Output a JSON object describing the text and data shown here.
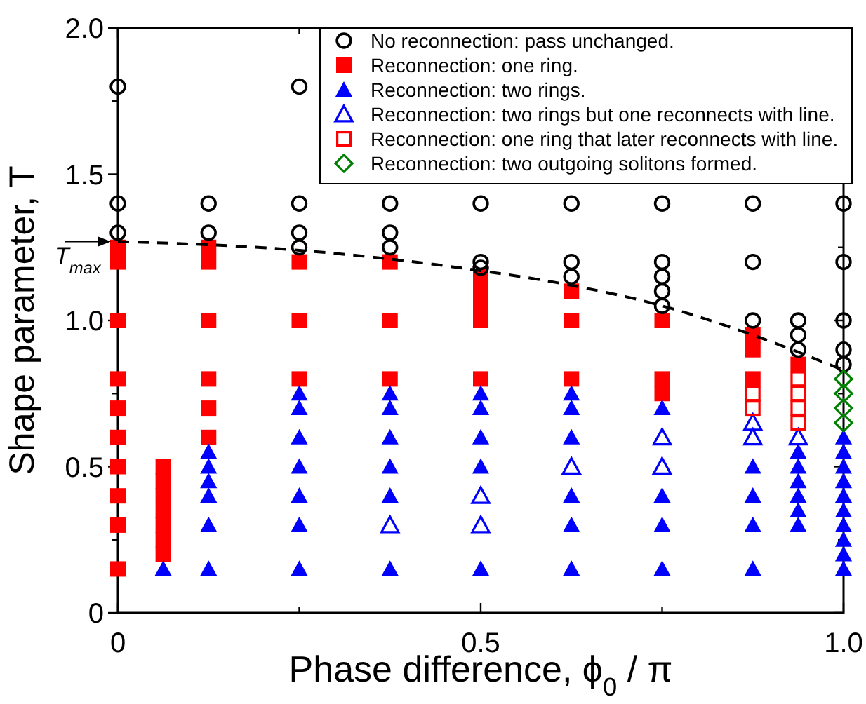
{
  "chart_data": {
    "type": "scatter",
    "xlabel": "Phase difference,  ϕ$_{0}$ / π",
    "ylabel": "Shape parameter, T",
    "xlim": [
      0,
      1
    ],
    "ylim": [
      0,
      2
    ],
    "xticks": [
      0,
      {
        "value": 0.25,
        "label": null
      },
      0.5,
      {
        "value": 0.75,
        "label": null
      },
      {
        "value": 1,
        "label": "1.0"
      }
    ],
    "yticks": [
      0,
      {
        "value": 0.25,
        "label": null
      },
      0.5,
      {
        "value": 0.75,
        "label": null
      },
      {
        "value": 1,
        "label": "1.0"
      },
      {
        "value": 1.25,
        "label": null
      },
      1.5,
      {
        "value": 1.75,
        "label": null
      },
      {
        "value": 2,
        "label": "2.0"
      }
    ],
    "grid": false,
    "legend": "top right",
    "annotations": [
      {
        "text": "T$_{max}$",
        "x": 0,
        "y": 1.27
      }
    ],
    "series": [
      {
        "name": "No reconnection: pass unchanged.",
        "color": "#000000",
        "marker": "circle-open",
        "x": [
          0,
          0,
          0,
          0.125,
          0.125,
          0.25,
          0.25,
          0.25,
          0.25,
          0.375,
          0.375,
          0.375,
          0.5,
          0.5,
          0.5,
          0.625,
          0.625,
          0.625,
          0.75,
          0.75,
          0.75,
          0.75,
          0.75,
          0.875,
          0.875,
          0.875,
          0.9375,
          0.9375,
          0.9375,
          1,
          1,
          1,
          1,
          1
        ],
        "values": [
          1.8,
          1.4,
          1.3,
          1.4,
          1.3,
          1.8,
          1.4,
          1.3,
          1.25,
          1.4,
          1.3,
          1.25,
          1.4,
          1.2,
          1.18,
          1.4,
          1.2,
          1.15,
          1.4,
          1.2,
          1.15,
          1.1,
          1.05,
          1.4,
          1.2,
          1.0,
          1.0,
          0.95,
          0.9,
          1.4,
          1.2,
          1.0,
          0.9,
          0.85
        ]
      },
      {
        "name": "Reconnection: one ring.",
        "color": "#ff0000",
        "marker": "square",
        "x": [
          0,
          0,
          0,
          0,
          0,
          0,
          0,
          0,
          0,
          0,
          0.0625,
          0.0625,
          0.0625,
          0.0625,
          0.0625,
          0.0625,
          0.0625,
          0.125,
          0.125,
          0.125,
          0.125,
          0.125,
          0.125,
          0.25,
          0.25,
          0.25,
          0.375,
          0.375,
          0.375,
          0.5,
          0.5,
          0.5,
          0.5,
          0.5,
          0.625,
          0.625,
          0.625,
          0.75,
          0.75,
          0.75,
          0.875,
          0.875,
          0.875,
          0.9375
        ],
        "values": [
          1.25,
          1.2,
          1.0,
          0.8,
          0.7,
          0.6,
          0.5,
          0.4,
          0.3,
          0.15,
          0.5,
          0.45,
          0.4,
          0.35,
          0.3,
          0.25,
          0.2,
          1.25,
          1.2,
          1.0,
          0.8,
          0.7,
          0.6,
          1.2,
          1.0,
          0.8,
          1.2,
          1.0,
          0.8,
          1.15,
          1.1,
          1.05,
          1.0,
          0.8,
          1.1,
          1.0,
          0.8,
          1.0,
          0.8,
          0.75,
          0.95,
          0.9,
          0.8,
          0.85
        ]
      },
      {
        "name": "Reconnection: two rings.",
        "color": "#0000ff",
        "marker": "triangle",
        "x": [
          0.0625,
          0.125,
          0.125,
          0.125,
          0.125,
          0.125,
          0.125,
          0.25,
          0.25,
          0.25,
          0.25,
          0.25,
          0.25,
          0.25,
          0.375,
          0.375,
          0.375,
          0.375,
          0.375,
          0.375,
          0.5,
          0.5,
          0.5,
          0.5,
          0.5,
          0.625,
          0.625,
          0.625,
          0.625,
          0.625,
          0.625,
          0.75,
          0.75,
          0.75,
          0.75,
          0.875,
          0.875,
          0.875,
          0.875,
          0.9375,
          0.9375,
          0.9375,
          0.9375,
          0.9375,
          0.9375,
          1,
          1,
          1,
          1,
          1,
          1,
          1,
          1,
          1,
          1
        ],
        "values": [
          0.15,
          0.55,
          0.5,
          0.45,
          0.4,
          0.3,
          0.15,
          0.75,
          0.7,
          0.6,
          0.5,
          0.4,
          0.3,
          0.15,
          0.75,
          0.7,
          0.6,
          0.5,
          0.4,
          0.15,
          0.75,
          0.7,
          0.6,
          0.5,
          0.15,
          0.75,
          0.7,
          0.6,
          0.4,
          0.3,
          0.15,
          0.7,
          0.4,
          0.3,
          0.15,
          0.5,
          0.4,
          0.3,
          0.15,
          0.55,
          0.5,
          0.45,
          0.4,
          0.35,
          0.3,
          0.6,
          0.55,
          0.5,
          0.45,
          0.4,
          0.35,
          0.3,
          0.25,
          0.2,
          0.15
        ]
      },
      {
        "name": "Reconnection: two rings but one reconnects with line.",
        "color": "#0000ff",
        "marker": "triangle-open",
        "x": [
          0.375,
          0.5,
          0.5,
          0.625,
          0.75,
          0.75,
          0.875,
          0.875,
          0.9375
        ],
        "values": [
          0.3,
          0.4,
          0.3,
          0.5,
          0.6,
          0.5,
          0.65,
          0.6,
          0.6
        ]
      },
      {
        "name": "Reconnection: one ring that later reconnects with line.",
        "color": "#ff0000",
        "marker": "square-open",
        "x": [
          0.875,
          0.875,
          0.9375,
          0.9375,
          0.9375,
          0.9375
        ],
        "values": [
          0.75,
          0.7,
          0.8,
          0.75,
          0.7,
          0.65
        ]
      },
      {
        "name": "Reconnection: two outgoing solitons formed.",
        "color": "#008000",
        "marker": "diamond-open",
        "x": [
          1,
          1,
          1,
          1
        ],
        "values": [
          0.8,
          0.75,
          0.7,
          0.65
        ]
      },
      {
        "type": "line",
        "color": "#000000",
        "line_style": "dashed",
        "marker": "none",
        "x": [
          0,
          0.25,
          0.5,
          0.625,
          0.75,
          0.875,
          1
        ],
        "values": [
          1.27,
          1.24,
          1.17,
          1.12,
          1.05,
          0.95,
          0.83
        ]
      }
    ]
  }
}
